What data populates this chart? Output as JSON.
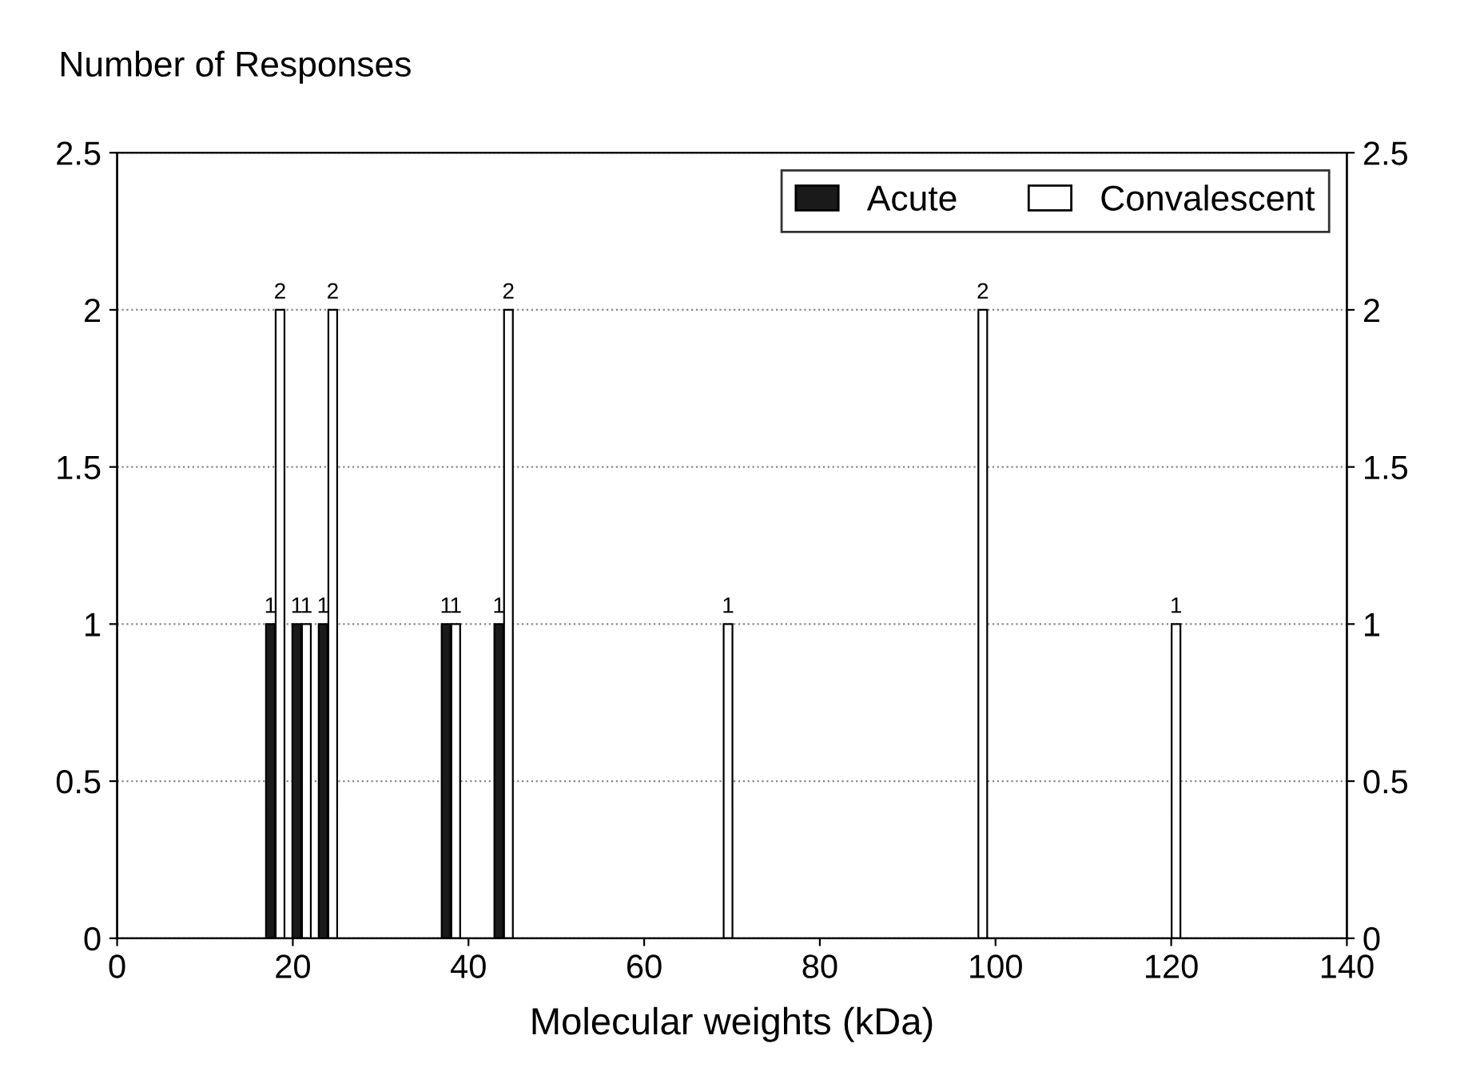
{
  "chart_data": {
    "type": "bar",
    "title": "Number of Responses",
    "xlabel": "Molecular weights (kDa)",
    "x": [
      18,
      21,
      24,
      38,
      44,
      69,
      98,
      120
    ],
    "series": [
      {
        "name": "Acute",
        "color": "#1a1a1a",
        "values": [
          1,
          1,
          1,
          1,
          1,
          null,
          null,
          null
        ]
      },
      {
        "name": "Convalescent",
        "color": "#ffffff",
        "values": [
          2,
          1,
          2,
          1,
          2,
          1,
          2,
          1
        ]
      }
    ],
    "xlim": [
      0,
      140
    ],
    "xticks": [
      0,
      20,
      40,
      60,
      80,
      100,
      120,
      140
    ],
    "ylim": [
      0,
      2.5
    ],
    "yticks": [
      0,
      0.5,
      1,
      1.5,
      2,
      2.5
    ],
    "y2lim": [
      0,
      2.5
    ],
    "y2ticks": [
      0,
      0.5,
      1,
      1.5,
      2,
      2.5
    ],
    "grid": "y",
    "legend": "top right",
    "data_labels": true
  }
}
